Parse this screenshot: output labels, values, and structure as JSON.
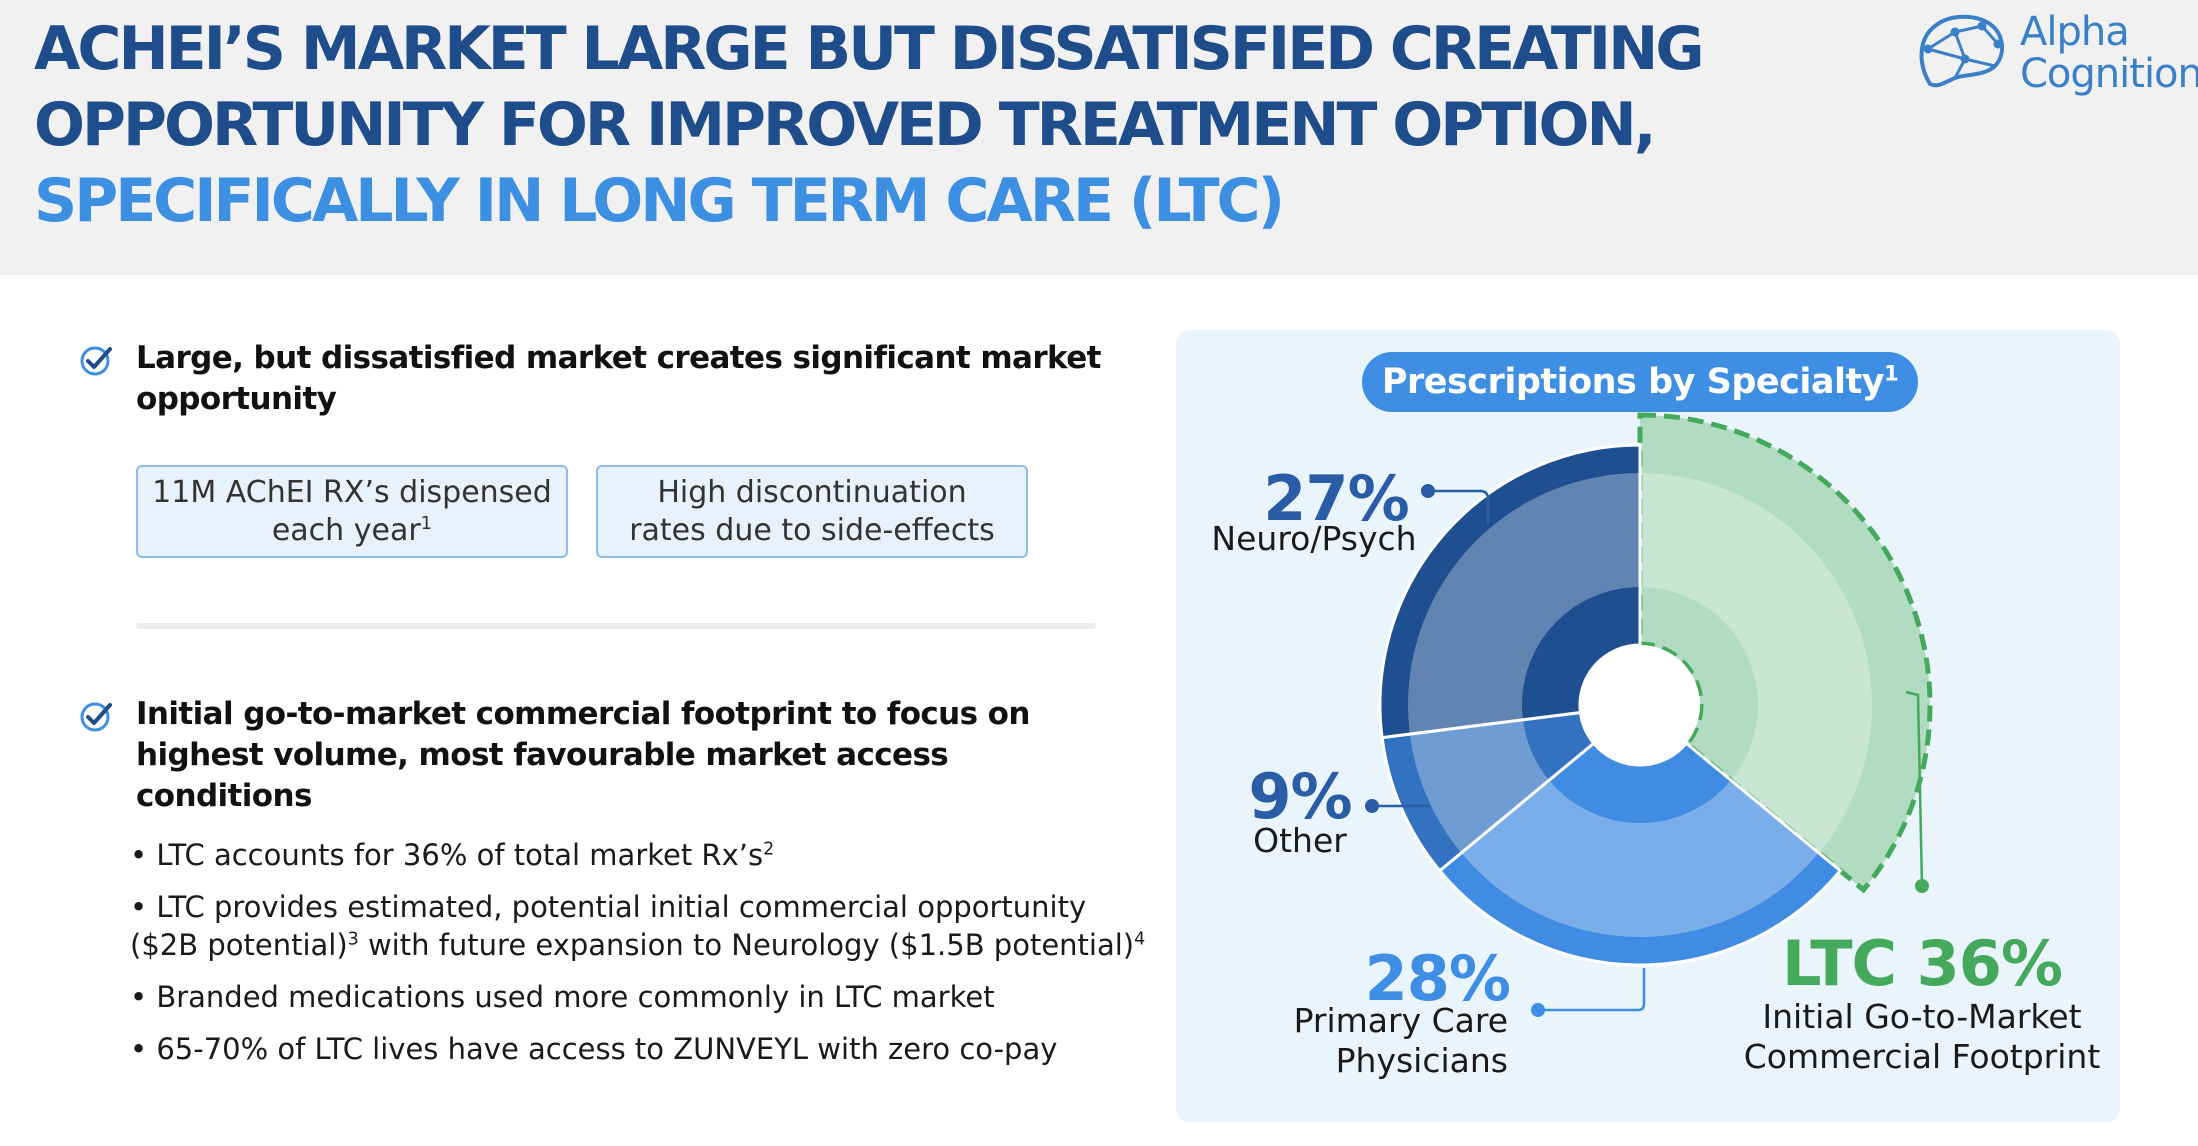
{
  "header": {
    "title_line1": "ACHEI’S MARKET LARGE BUT DISSATISFIED CREATING",
    "title_line2": "OPPORTUNITY FOR IMPROVED TREATMENT OPTION,",
    "title_line3": "SPECIFICALLY IN LONG TERM CARE (LTC)"
  },
  "logo": {
    "line1": "Alpha",
    "line2": "Cognition"
  },
  "section1": {
    "heading_line1": "Large, but dissatisfied market creates significant market",
    "heading_line2": "opportunity",
    "stat1_line1": "11M AChEI RX’s dispensed",
    "stat1_line2": "each year",
    "stat1_sup": "1",
    "stat2_line1": "High discontinuation",
    "stat2_line2": "rates due to side-effects"
  },
  "section2": {
    "heading_line1": "Initial go-to-market commercial footprint to focus on",
    "heading_line2": "highest volume, most favourable market access",
    "heading_line3": "conditions",
    "b1_text": "• LTC accounts for 36% of total market Rx’s",
    "b1_sup": "2",
    "b2_line1": "• LTC provides estimated, potential initial commercial opportunity",
    "b2_part1": "($2B potential)",
    "b2_sup1": "3",
    "b2_part2": " with future expansion to Neurology ($1.5B potential)",
    "b2_sup2": "4",
    "b3_text": "• Branded medications used more commonly in LTC market",
    "b4_text": "• 65-70% of LTC lives have access to ZUNVEYL with zero co-pay"
  },
  "chart_data": {
    "type": "pie",
    "title": "Prescriptions by Specialty",
    "title_sup": "1",
    "slices": [
      {
        "label": "LTC",
        "value": 36,
        "pct_text": "LTC 36%",
        "desc_line1": "Initial Go-to-Market",
        "desc_line2": "Commercial Footprint",
        "color": "#b2dcc2",
        "highlight": true
      },
      {
        "label": "Primary Care Physicians",
        "value": 28,
        "pct_text": "28%",
        "desc_line1": "Primary Care",
        "desc_line2": "Physicians",
        "color": "#418ce3"
      },
      {
        "label": "Other",
        "value": 9,
        "pct_text": "9%",
        "desc_line1": "Other",
        "desc_line2": "",
        "color": "#3272c1"
      },
      {
        "label": "Neuro/Psych",
        "value": 27,
        "pct_text": "27%",
        "desc_line1": "Neuro/Psych",
        "desc_line2": "",
        "color": "#1e5091"
      }
    ],
    "colors": {
      "ltc_text": "#45a95c",
      "label_blue": "#2a5da5",
      "accent": "#3e8fe4"
    }
  }
}
